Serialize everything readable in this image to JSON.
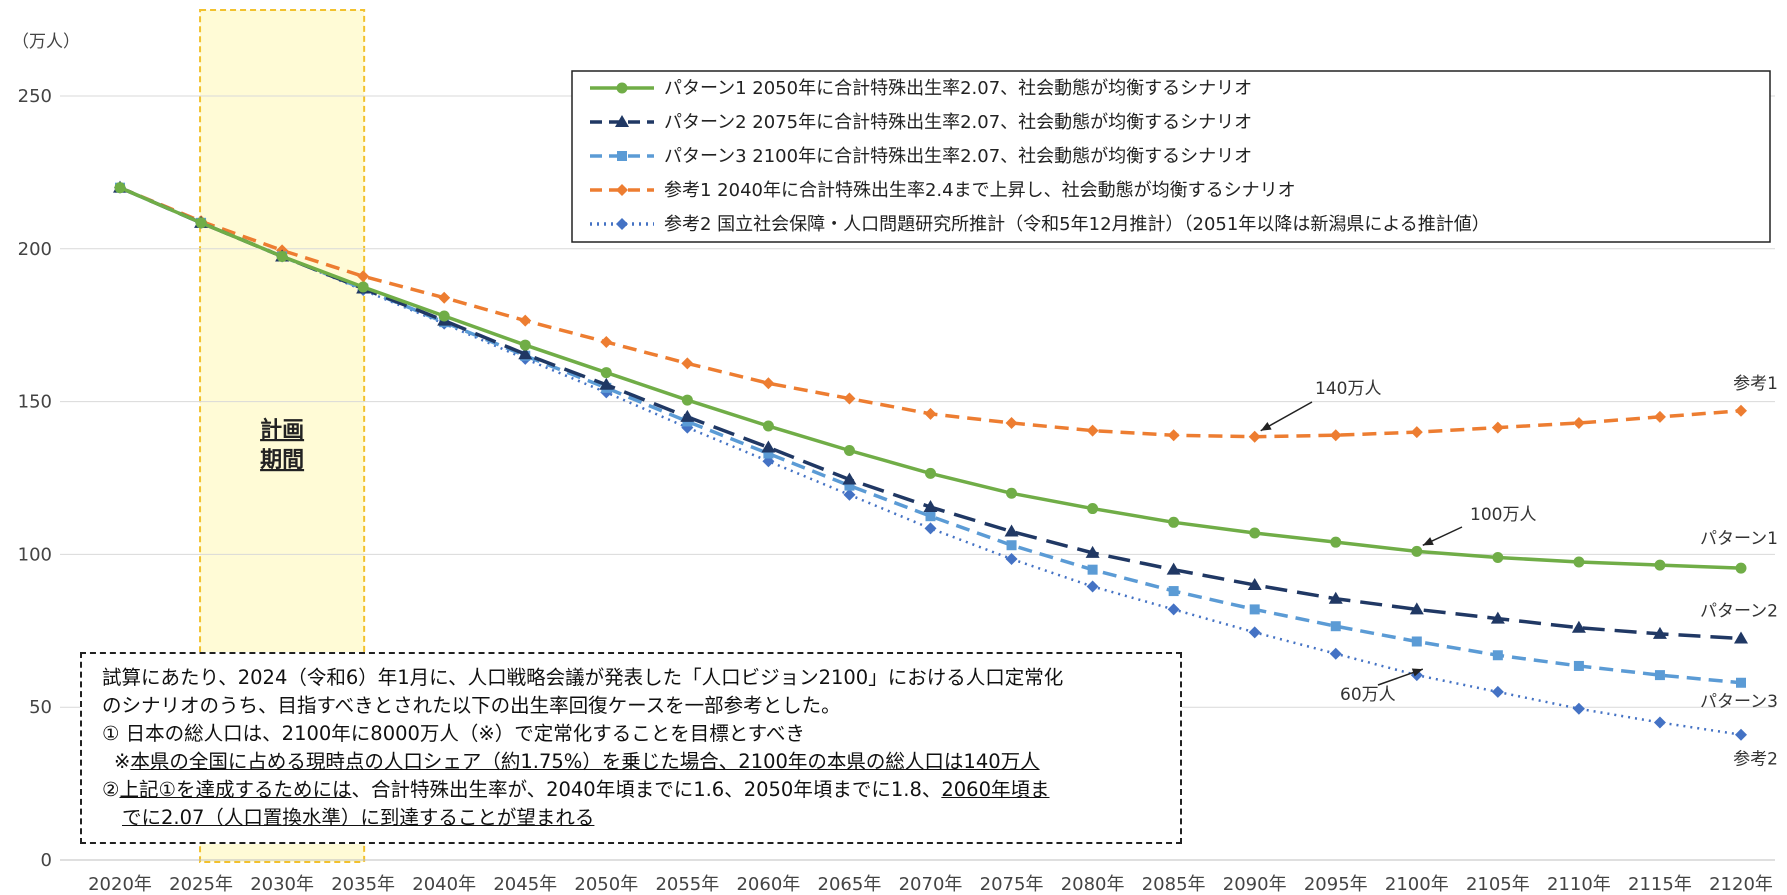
{
  "chart_data": {
    "type": "line",
    "y_unit": "（万人）",
    "x": [
      "2020年",
      "2025年",
      "2030年",
      "2035年",
      "2040年",
      "2045年",
      "2050年",
      "2055年",
      "2060年",
      "2065年",
      "2070年",
      "2075年",
      "2080年",
      "2085年",
      "2090年",
      "2095年",
      "2100年",
      "2105年",
      "2110年",
      "2115年",
      "2120年"
    ],
    "ylim": [
      0,
      250
    ],
    "yticks": [
      0,
      50,
      100,
      150,
      200,
      250
    ],
    "grid": true,
    "legend_position": "top-right",
    "series": [
      {
        "name": "パターン1 2050年に合計特殊出生率2.07、社会動態が均衡するシナリオ",
        "end_label": "パターン1",
        "color": "#70ad47",
        "dash": "solid",
        "marker": "circle",
        "values": [
          220,
          208.5,
          197.5,
          187.5,
          178,
          168.5,
          159.5,
          150.5,
          142,
          134,
          126.5,
          120,
          115,
          110.5,
          107,
          104,
          101,
          99,
          97.5,
          96.5,
          95.5
        ]
      },
      {
        "name": "パターン2 2075年に合計特殊出生率2.07、社会動態が均衡するシナリオ",
        "end_label": "パターン2",
        "color": "#203864",
        "dash": "longdash",
        "marker": "triangle",
        "values": [
          220,
          208.5,
          197.5,
          187,
          176.5,
          165.5,
          155.5,
          145,
          135,
          124.5,
          115.5,
          107.5,
          100.5,
          95,
          90,
          85.5,
          82,
          79,
          76,
          74,
          72.5
        ]
      },
      {
        "name": "パターン3 2100年に合計特殊出生率2.07、社会動態が均衡するシナリオ",
        "end_label": "パターン3",
        "color": "#5b9bd5",
        "dash": "dash",
        "marker": "square",
        "values": [
          220,
          208.5,
          197.5,
          187,
          176,
          165,
          154.5,
          143.5,
          133,
          122.5,
          112.5,
          103,
          95,
          88,
          82,
          76.5,
          71.5,
          67,
          63.5,
          60.5,
          58
        ]
      },
      {
        "name": "参考1 2040年に合計特殊出生率2.4まで上昇し、社会動態が均衡するシナリオ",
        "end_label": "参考1",
        "color": "#ed7d31",
        "dash": "dash",
        "marker": "diamond",
        "values": [
          220,
          209,
          199.5,
          191,
          184,
          176.5,
          169.5,
          162.5,
          156,
          151,
          146,
          143,
          140.5,
          139,
          138.5,
          139,
          140,
          141.5,
          143,
          145,
          147
        ]
      },
      {
        "name": "参考2 国立社会保障・人口問題研究所推計（令和5年12月推計）（2051年以降は新潟県による推計値）",
        "end_label": "参考2",
        "color": "#4472c4",
        "dash": "dot",
        "marker": "diamond",
        "values": [
          220,
          208.5,
          197.5,
          186.5,
          175.5,
          164,
          153,
          141.5,
          130.5,
          119.5,
          108.5,
          98.5,
          89.5,
          82,
          74.5,
          67.5,
          60.5,
          55,
          49.5,
          45,
          41
        ]
      }
    ],
    "annotations": [
      {
        "text": "140万人"
      },
      {
        "text": "100万人"
      },
      {
        "text": "60万人"
      }
    ],
    "plan_period": {
      "from": "2025年",
      "to": "2035年",
      "label_lines": [
        "計画",
        "期間"
      ]
    }
  },
  "note": {
    "line1": "試算にあたり、2024（令和6）年1月に、人口戦略会議が発表した「人口ビジョン2100」における人口定常化",
    "line2": "のシナリオのうち、目指すべきとされた以下の出生率回復ケースを一部参考とした。",
    "line3": "① 日本の総人口は、2100年に8000万人（※）で定常化することを目標とすべき",
    "line4_prefix": "※",
    "line4_underlined": "本県の全国に占める現時点の人口シェア（約1.75%）を乗じた場合、2100年の本県の総人口は140万人",
    "line5_prefix": "②",
    "line5_underlined": "上記①を達成するためには",
    "line5_middle": "、合計特殊出生率が、2040年頃までに1.6、2050年頃までに1.8、",
    "line5_underlined_end": "2060年頃ま",
    "line6_underlined": "でに2.07（人口置換水準）に到達することが望まれる"
  }
}
